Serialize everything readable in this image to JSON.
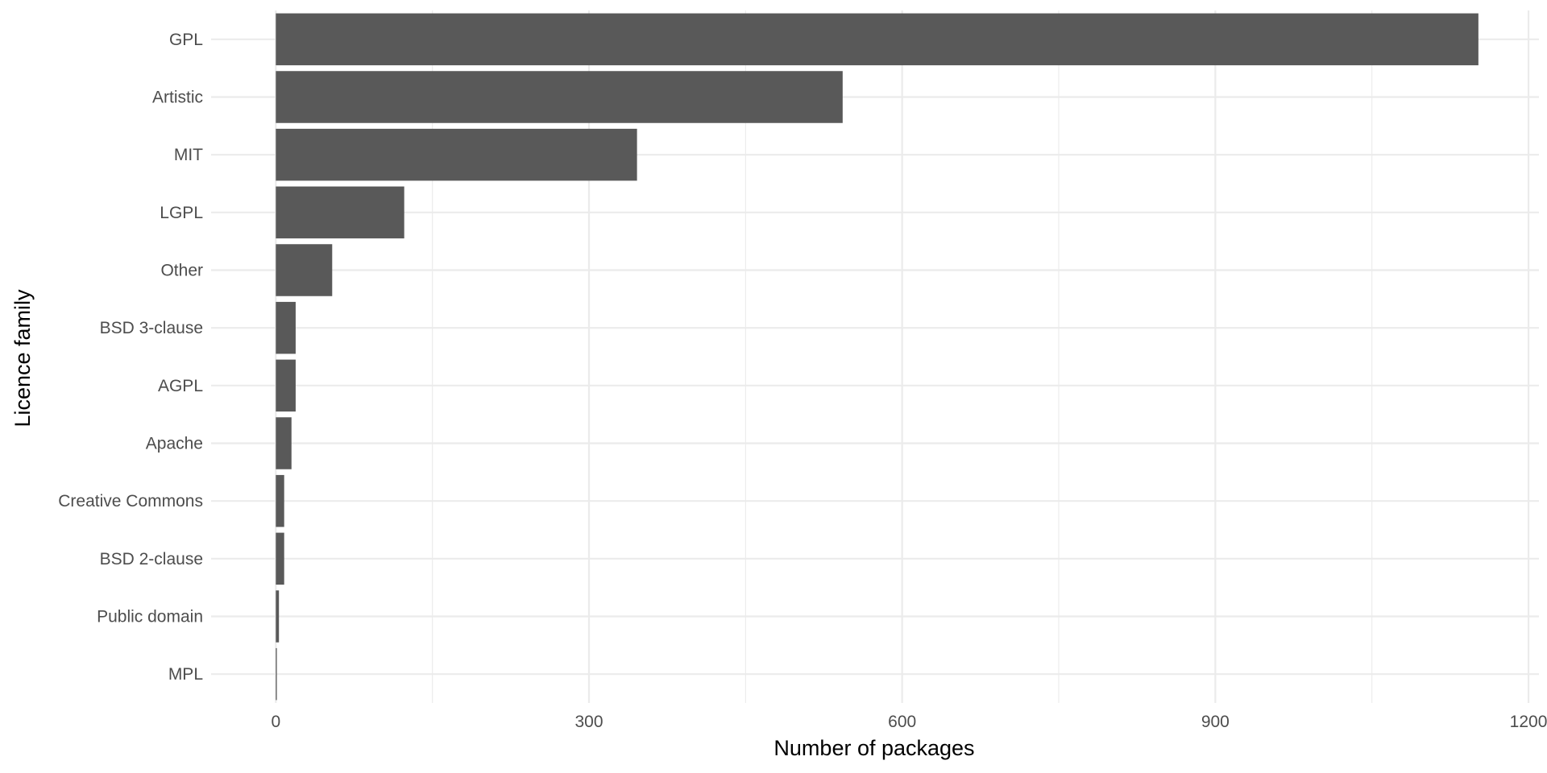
{
  "chart_data": {
    "type": "bar",
    "orientation": "horizontal",
    "categories": [
      "GPL",
      "Artistic",
      "MIT",
      "LGPL",
      "Other",
      "BSD 3-clause",
      "AGPL",
      "Apache",
      "Creative Commons",
      "BSD 2-clause",
      "Public domain",
      "MPL"
    ],
    "values": [
      1152,
      543,
      346,
      123,
      54,
      19,
      19,
      15,
      8,
      8,
      3,
      1
    ],
    "xlabel": "Number of packages",
    "ylabel": "Licence family",
    "xlim": [
      -62,
      1210
    ],
    "x_ticks": [
      0,
      300,
      600,
      900,
      1200
    ],
    "x_tick_labels": [
      "0",
      "300",
      "600",
      "900",
      "1200"
    ],
    "grid": true,
    "legend": "none",
    "bar_color": "#595959",
    "grid_color": "#ebebeb"
  }
}
